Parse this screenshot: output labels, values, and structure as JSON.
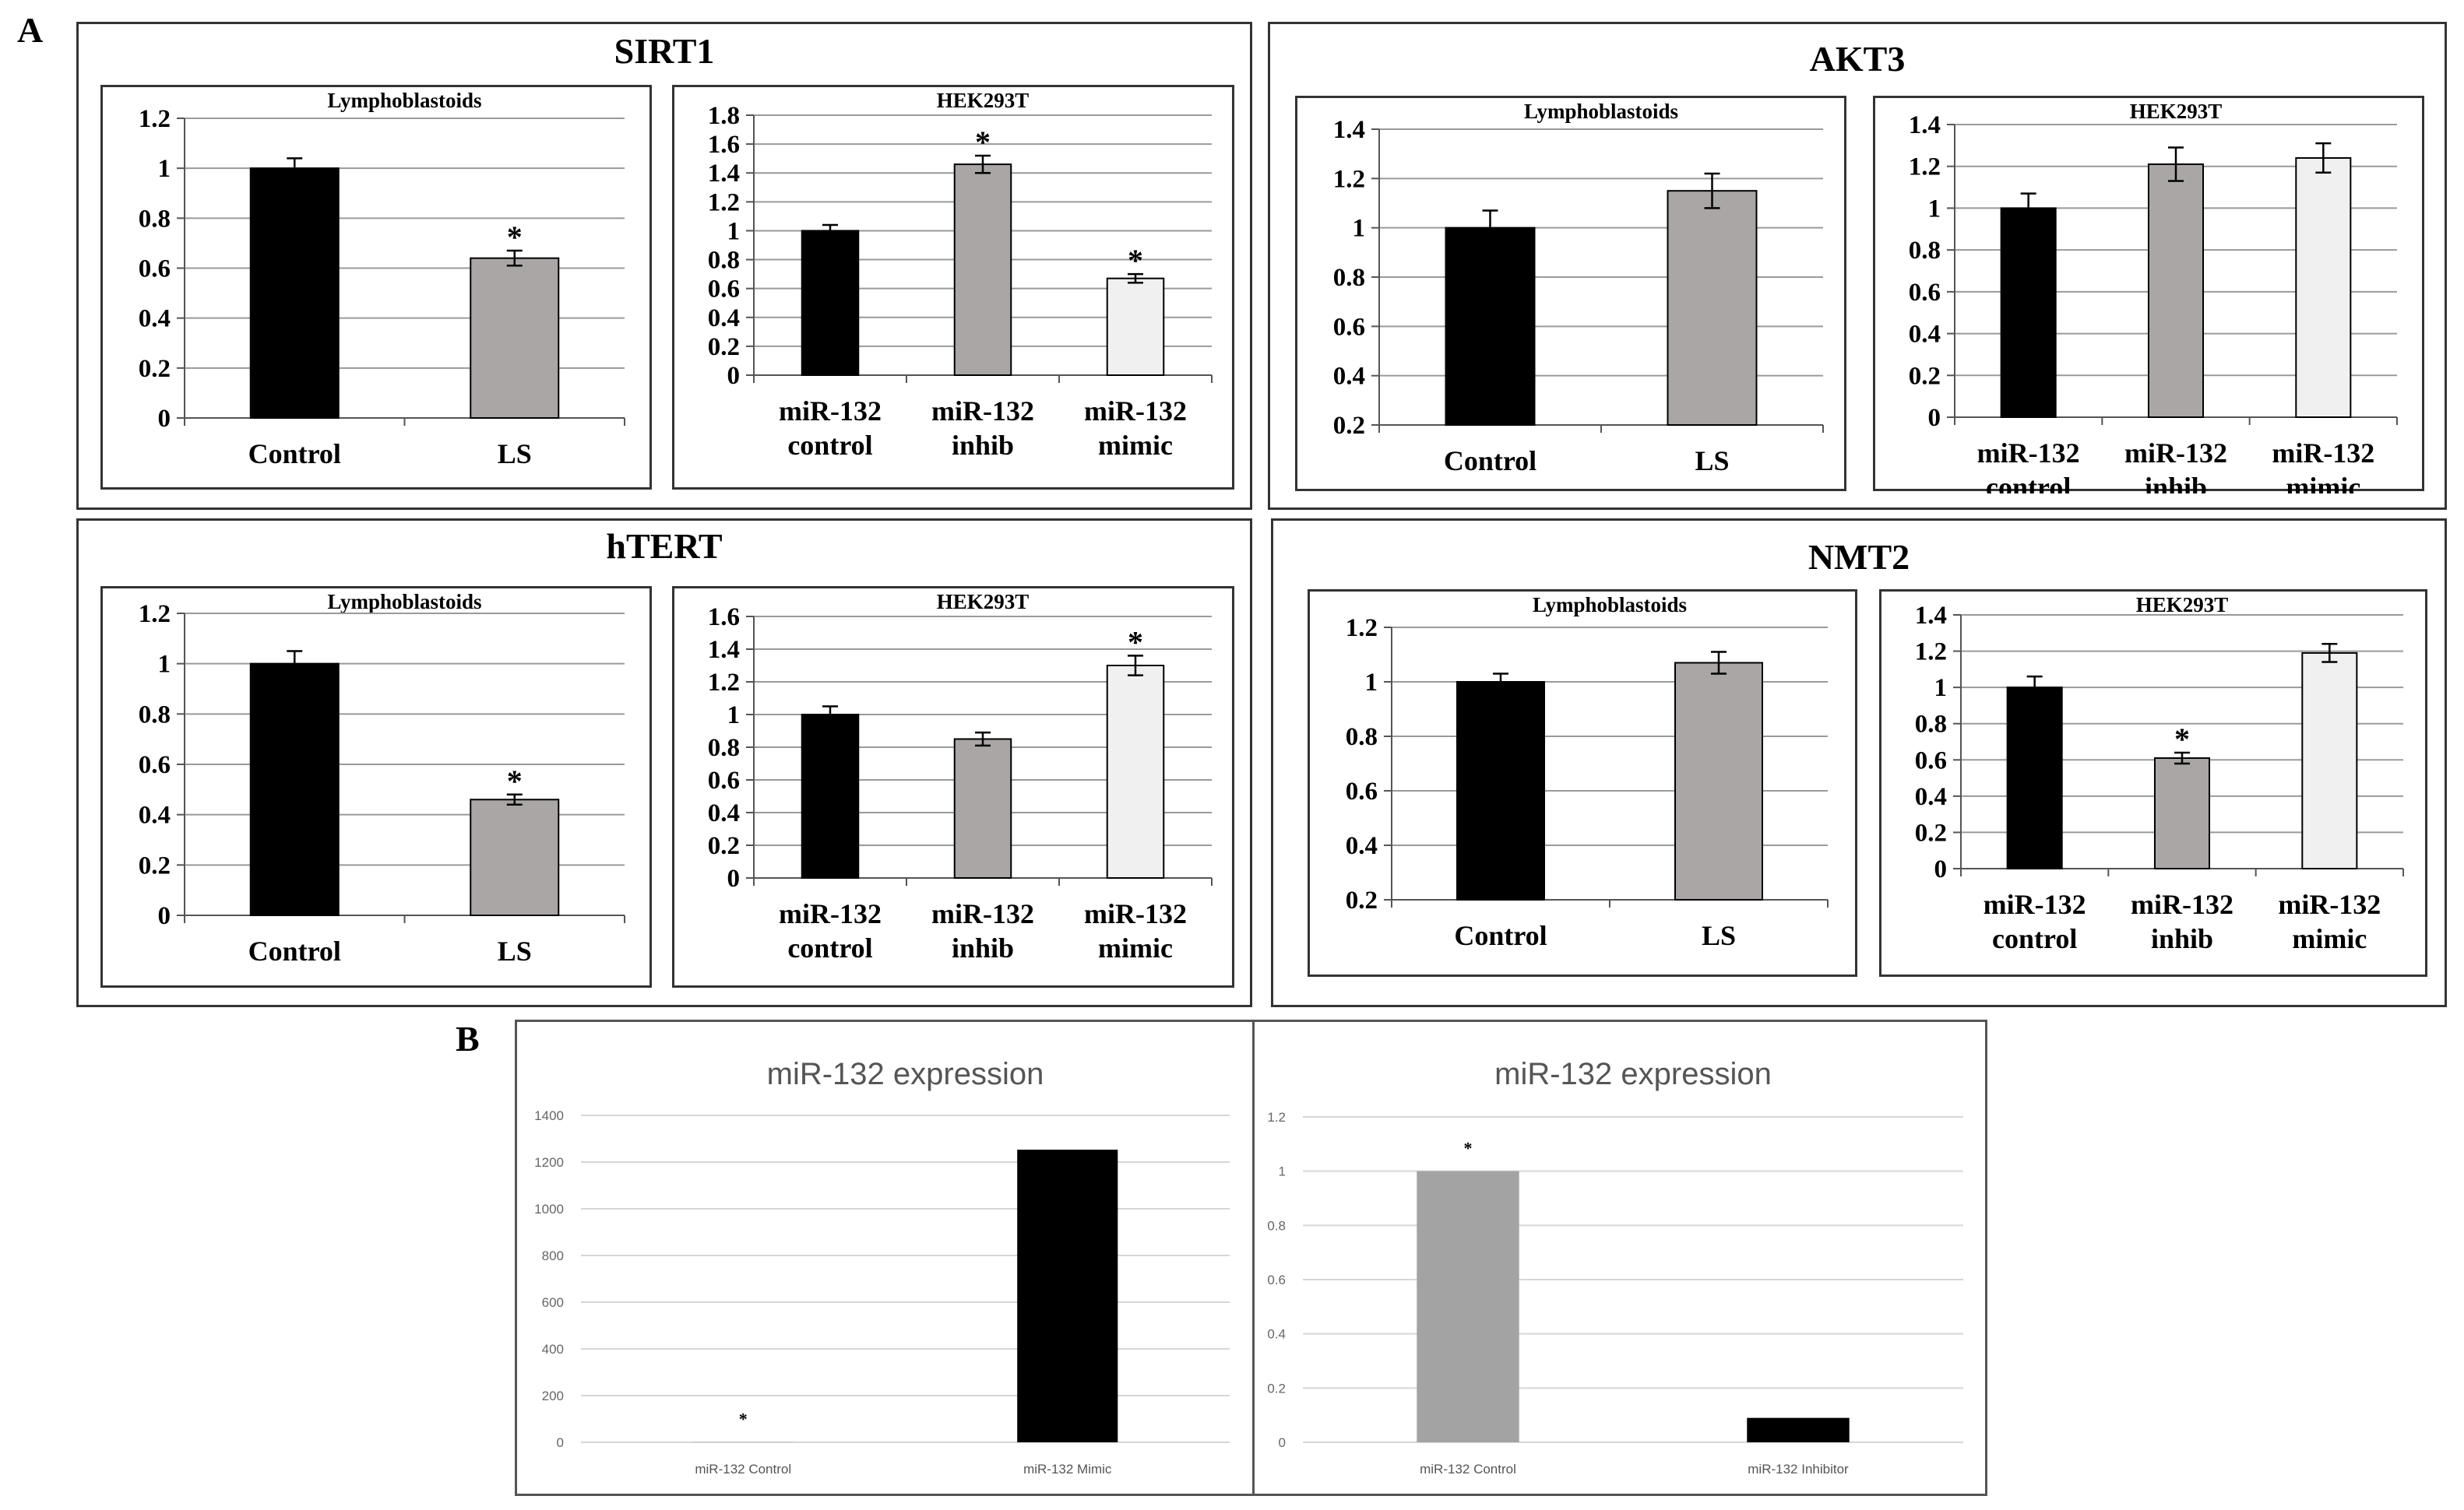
{
  "panel_labels": {
    "a": "A",
    "b": "B"
  },
  "groups": [
    {
      "key": "sirt1",
      "title": "SIRT1"
    },
    {
      "key": "akt3",
      "title": "AKT3"
    },
    {
      "key": "htert",
      "title": "hTERT"
    },
    {
      "key": "nmt2",
      "title": "NMT2"
    }
  ],
  "colors": {
    "black_bar": "#000000",
    "gray_bar": "#a9a6a5",
    "light_bar": "#f0f0f0",
    "b_gray_bar": "#a3a3a3",
    "grid": "#9a9a9a"
  },
  "chart_data": [
    {
      "id": "sirt1-lympho",
      "type": "bar",
      "title": "Lymphoblastoids",
      "ylim": [
        0,
        1.2
      ],
      "yticks": [
        "0",
        "0.2",
        "0.4",
        "0.6",
        "0.8",
        "1",
        "1.2"
      ],
      "categories": [
        [
          "Control"
        ],
        [
          "LS"
        ]
      ],
      "values": [
        1.0,
        0.64
      ],
      "errors": [
        0.04,
        0.03
      ],
      "colors": [
        "black",
        "gray"
      ],
      "stars": [
        false,
        true
      ]
    },
    {
      "id": "sirt1-hek",
      "type": "bar",
      "title": "HEK293T",
      "ylim": [
        0,
        1.8
      ],
      "yticks": [
        "0",
        "0.2",
        "0.4",
        "0.6",
        "0.8",
        "1",
        "1.2",
        "1.4",
        "1.6",
        "1.8"
      ],
      "categories": [
        [
          "miR-132",
          "control"
        ],
        [
          "miR-132",
          "inhib"
        ],
        [
          "miR-132",
          "mimic"
        ]
      ],
      "values": [
        1.0,
        1.46,
        0.67
      ],
      "errors": [
        0.04,
        0.06,
        0.03
      ],
      "colors": [
        "black",
        "gray",
        "light"
      ],
      "stars": [
        false,
        true,
        true
      ]
    },
    {
      "id": "akt3-lympho",
      "type": "bar",
      "title": "Lymphoblastoids",
      "ylim": [
        0.2,
        1.4
      ],
      "yticks": [
        "0.2",
        "0.4",
        "0.6",
        "0.8",
        "1",
        "1.2",
        "1.4"
      ],
      "categories": [
        [
          "Control"
        ],
        [
          "LS"
        ]
      ],
      "values": [
        1.0,
        1.15
      ],
      "errors": [
        0.07,
        0.07
      ],
      "colors": [
        "black",
        "gray"
      ],
      "stars": [
        false,
        false
      ]
    },
    {
      "id": "akt3-hek",
      "type": "bar",
      "title": "HEK293T",
      "ylim": [
        0,
        1.4
      ],
      "yticks": [
        "0",
        "0.2",
        "0.4",
        "0.6",
        "0.8",
        "1",
        "1.2",
        "1.4"
      ],
      "categories": [
        [
          "miR-132",
          "control"
        ],
        [
          "miR-132",
          "inhib"
        ],
        [
          "miR-132",
          "mimic"
        ]
      ],
      "values": [
        1.0,
        1.21,
        1.24
      ],
      "errors": [
        0.07,
        0.08,
        0.07
      ],
      "colors": [
        "black",
        "gray",
        "light"
      ],
      "stars": [
        false,
        false,
        false
      ]
    },
    {
      "id": "htert-lympho",
      "type": "bar",
      "title": "Lymphoblastoids",
      "ylim": [
        0,
        1.2
      ],
      "yticks": [
        "0",
        "0.2",
        "0.4",
        "0.6",
        "0.8",
        "1",
        "1.2"
      ],
      "categories": [
        [
          "Control"
        ],
        [
          "LS"
        ]
      ],
      "values": [
        1.0,
        0.46
      ],
      "errors": [
        0.05,
        0.02
      ],
      "colors": [
        "black",
        "gray"
      ],
      "stars": [
        false,
        true
      ]
    },
    {
      "id": "htert-hek",
      "type": "bar",
      "title": "HEK293T",
      "ylim": [
        0,
        1.6
      ],
      "yticks": [
        "0",
        "0.2",
        "0.4",
        "0.6",
        "0.8",
        "1",
        "1.2",
        "1.4",
        "1.6"
      ],
      "categories": [
        [
          "miR-132",
          "control"
        ],
        [
          "miR-132",
          "inhib"
        ],
        [
          "miR-132",
          "mimic"
        ]
      ],
      "values": [
        1.0,
        0.85,
        1.3
      ],
      "errors": [
        0.05,
        0.04,
        0.06
      ],
      "colors": [
        "black",
        "gray",
        "light"
      ],
      "stars": [
        false,
        false,
        true
      ]
    },
    {
      "id": "nmt2-lympho",
      "type": "bar",
      "title": "Lymphoblastoids",
      "ylim": [
        0.2,
        1.2
      ],
      "yticks": [
        "0.2",
        "0.4",
        "0.6",
        "0.8",
        "1",
        "1.2"
      ],
      "categories": [
        [
          "Control"
        ],
        [
          "LS"
        ]
      ],
      "values": [
        1.0,
        1.07
      ],
      "errors": [
        0.03,
        0.04
      ],
      "colors": [
        "black",
        "gray"
      ],
      "stars": [
        false,
        false
      ]
    },
    {
      "id": "nmt2-hek",
      "type": "bar",
      "title": "HEK293T",
      "ylim": [
        0,
        1.4
      ],
      "yticks": [
        "0",
        "0.2",
        "0.4",
        "0.6",
        "0.8",
        "1",
        "1.2",
        "1.4"
      ],
      "categories": [
        [
          "miR-132",
          "control"
        ],
        [
          "miR-132",
          "inhib"
        ],
        [
          "miR-132",
          "mimic"
        ]
      ],
      "values": [
        1.0,
        0.61,
        1.19
      ],
      "errors": [
        0.06,
        0.03,
        0.05
      ],
      "colors": [
        "black",
        "gray",
        "light"
      ],
      "stars": [
        false,
        true,
        false
      ]
    },
    {
      "id": "b-mimic",
      "type": "bar",
      "title": "miR-132 expression",
      "ylim": [
        0,
        1400
      ],
      "yticks": [
        "0",
        "200",
        "400",
        "600",
        "800",
        "1000",
        "1200",
        "1400"
      ],
      "categories": [
        [
          "miR-132 Control"
        ],
        [
          "miR-132 Mimic"
        ]
      ],
      "values": [
        1,
        1253
      ],
      "errors": [
        0,
        0
      ],
      "colors": [
        "b_gray",
        "black"
      ],
      "stars": [
        true,
        false
      ]
    },
    {
      "id": "b-inhib",
      "type": "bar",
      "title": "miR-132 expression",
      "ylim": [
        0,
        1.2
      ],
      "yticks": [
        "0",
        "0.2",
        "0.4",
        "0.6",
        "0.8",
        "1",
        "1.2"
      ],
      "categories": [
        [
          "miR-132 Control"
        ],
        [
          "miR-132 Inhibitor"
        ]
      ],
      "values": [
        1.0,
        0.09
      ],
      "errors": [
        0,
        0
      ],
      "colors": [
        "b_gray",
        "black"
      ],
      "stars": [
        true,
        false
      ]
    }
  ]
}
